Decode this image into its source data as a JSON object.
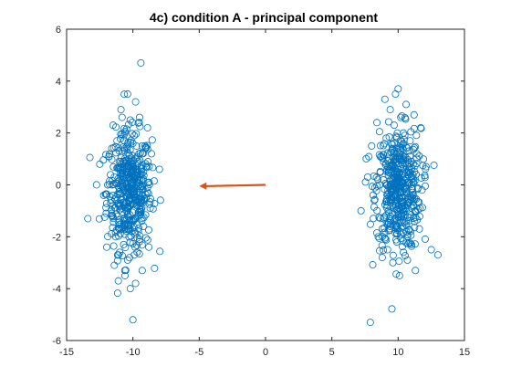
{
  "chart_data": {
    "type": "scatter",
    "title": "4c) condition A - principal component",
    "xlabel": "",
    "ylabel": "",
    "xlim": [
      -15,
      15
    ],
    "ylim": [
      -6,
      6
    ],
    "xticks": [
      "-15",
      "-10",
      "-5",
      "0",
      "5",
      "10",
      "15"
    ],
    "yticks": [
      "-6",
      "-4",
      "-2",
      "0",
      "2",
      "4",
      "6"
    ],
    "grid": false,
    "legend": "none",
    "marker": "open-circle",
    "colors": {
      "points": "#0072BD",
      "arrow": "#D95319",
      "axes": "#262626"
    },
    "series": [
      {
        "cluster": "left",
        "points": [
          [
            -9.4,
            4.7
          ],
          [
            -10.4,
            3.5
          ],
          [
            -9.8,
            3.2
          ],
          [
            -10.9,
            2.9
          ],
          [
            -9.5,
            2.6
          ],
          [
            -10.2,
            2.5
          ],
          [
            -11.5,
            2.3
          ],
          [
            -8.9,
            2.2
          ],
          [
            -10.6,
            2.0
          ],
          [
            -9.9,
            1.9
          ],
          [
            -11.2,
            1.7
          ],
          [
            -10.0,
            1.6
          ],
          [
            -9.3,
            1.5
          ],
          [
            -10.8,
            1.3
          ],
          [
            -8.6,
            1.2
          ],
          [
            -11.8,
            1.1
          ],
          [
            -10.3,
            1.0
          ],
          [
            -9.6,
            0.9
          ],
          [
            -12.5,
            0.8
          ],
          [
            -10.9,
            0.7
          ],
          [
            -8.0,
            0.6
          ],
          [
            -9.2,
            0.5
          ],
          [
            -10.5,
            0.4
          ],
          [
            -11.4,
            0.3
          ],
          [
            -9.9,
            0.2
          ],
          [
            -8.4,
            0.15
          ],
          [
            -10.1,
            0.1
          ],
          [
            -11.9,
            0.0
          ],
          [
            -9.4,
            -0.1
          ],
          [
            -10.7,
            -0.2
          ],
          [
            -12.2,
            -0.4
          ],
          [
            -9.0,
            -0.5
          ],
          [
            -10.3,
            -0.6
          ],
          [
            -11.1,
            -0.7
          ],
          [
            -9.7,
            -0.8
          ],
          [
            -8.7,
            -0.9
          ],
          [
            -10.5,
            -1.0
          ],
          [
            -11.6,
            -1.1
          ],
          [
            -13.4,
            -1.3
          ],
          [
            -9.8,
            -1.3
          ],
          [
            -10.9,
            -1.5
          ],
          [
            -9.2,
            -1.6
          ],
          [
            -10.1,
            -1.8
          ],
          [
            -11.3,
            -2.0
          ],
          [
            -9.5,
            -2.1
          ],
          [
            -10.7,
            -2.3
          ],
          [
            -8.8,
            -2.4
          ],
          [
            -11.0,
            -2.6
          ],
          [
            -9.9,
            -2.7
          ],
          [
            -10.4,
            -2.9
          ],
          [
            -11.4,
            -3.1
          ],
          [
            -9.3,
            -3.3
          ],
          [
            -10.6,
            -3.5
          ],
          [
            -11.1,
            -3.7
          ],
          [
            -9.8,
            -3.8
          ],
          [
            -10.2,
            -4.0
          ],
          [
            -10.0,
            -5.2
          ]
        ]
      },
      {
        "cluster": "right",
        "points": [
          [
            10.0,
            3.7
          ],
          [
            9.8,
            3.5
          ],
          [
            9.0,
            3.3
          ],
          [
            10.6,
            3.1
          ],
          [
            9.4,
            2.9
          ],
          [
            11.2,
            2.7
          ],
          [
            10.2,
            2.6
          ],
          [
            8.4,
            2.4
          ],
          [
            9.7,
            2.3
          ],
          [
            11.7,
            2.2
          ],
          [
            10.4,
            2.0
          ],
          [
            9.1,
            1.8
          ],
          [
            10.9,
            1.7
          ],
          [
            8.0,
            1.5
          ],
          [
            9.9,
            1.4
          ],
          [
            11.4,
            1.2
          ],
          [
            10.1,
            1.1
          ],
          [
            8.9,
            0.9
          ],
          [
            10.7,
            0.8
          ],
          [
            12.1,
            0.7
          ],
          [
            9.5,
            0.5
          ],
          [
            10.3,
            0.4
          ],
          [
            7.7,
            0.3
          ],
          [
            11.0,
            0.2
          ],
          [
            9.8,
            0.1
          ],
          [
            8.6,
            0.0
          ],
          [
            10.5,
            -0.1
          ],
          [
            11.8,
            -0.2
          ],
          [
            9.3,
            -0.3
          ],
          [
            10.1,
            -0.5
          ],
          [
            8.2,
            -0.6
          ],
          [
            10.8,
            -0.7
          ],
          [
            9.6,
            -0.8
          ],
          [
            11.3,
            -1.0
          ],
          [
            7.2,
            -1.0
          ],
          [
            10.0,
            -1.1
          ],
          [
            8.9,
            -1.3
          ],
          [
            10.6,
            -1.4
          ],
          [
            9.4,
            -1.6
          ],
          [
            11.6,
            -1.7
          ],
          [
            10.2,
            -1.9
          ],
          [
            8.5,
            -2.0
          ],
          [
            9.9,
            -2.2
          ],
          [
            11.0,
            -2.3
          ],
          [
            9.2,
            -2.5
          ],
          [
            10.4,
            -2.6
          ],
          [
            12.5,
            -2.5
          ],
          [
            8.8,
            -2.8
          ],
          [
            10.7,
            -2.9
          ],
          [
            13.0,
            -2.7
          ],
          [
            9.6,
            -3.0
          ],
          [
            11.3,
            -3.3
          ],
          [
            10.1,
            -3.5
          ],
          [
            7.9,
            -5.3
          ]
        ]
      }
    ],
    "arrow": {
      "from": [
        0,
        0
      ],
      "to": [
        -5,
        -0.05
      ]
    }
  }
}
